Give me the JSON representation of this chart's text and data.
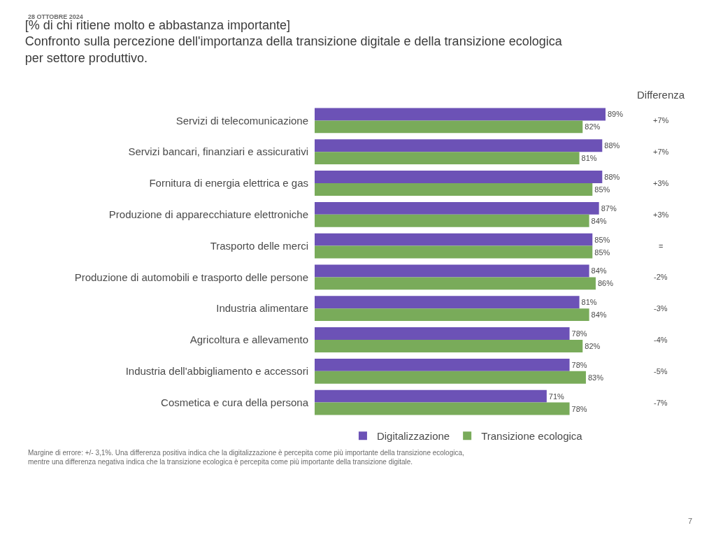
{
  "chart_data": {
    "type": "bar",
    "orientation": "horizontal",
    "title": "[% di chi ritiene molto e abbastanza importante]\nConfronto sulla percezione dell'importanza della transizione digitale e della transizione ecologica\nper settore produttivo.",
    "categories": [
      "Servizi di telecomunicazione",
      "Servizi bancari, finanziari e assicurativi",
      "Fornitura di energia elettrica e gas",
      "Produzione di apparecchiature elettroniche",
      "Trasporto delle merci",
      "Produzione di automobili e trasporto delle persone",
      "Industria alimentare",
      "Agricoltura e allevamento",
      "Industria dell'abbigliamento e accessori",
      "Cosmetica e cura della persona"
    ],
    "series": [
      {
        "name": "Digitalizzazione",
        "color": "#6c52b6",
        "values": [
          89,
          88,
          88,
          87,
          85,
          84,
          81,
          78,
          78,
          71
        ],
        "value_labels": [
          "89%",
          "88%",
          "88%",
          "87%",
          "85%",
          "84%",
          "81%",
          "78%",
          "78%",
          "71%"
        ]
      },
      {
        "name": "Transizione ecologica",
        "color": "#79ab5a",
        "values": [
          82,
          81,
          85,
          84,
          85,
          86,
          84,
          82,
          83,
          78
        ],
        "value_labels": [
          "82%",
          "81%",
          "85%",
          "84%",
          "85%",
          "86%",
          "84%",
          "82%",
          "83%",
          "78%"
        ]
      }
    ],
    "tick_labels": "y",
    "legend": "bottom",
    "annotations": [
      "28 OTTOBRE 2024",
      "Differenza",
      "Margine di errore: +/- 3,1%. Una differenza positiva indica che la digitalizzazione è percepita come più importante della transizione ecologica, mentre una differenza negativa indica che la transizione ecologica è percepita come più importante della transizione digitale.",
      "7",
      "+7%",
      "+7%",
      "+3%",
      "+3%",
      "=",
      "-2%",
      "-3%",
      "-4%",
      "-5%",
      "-7%"
    ]
  }
}
